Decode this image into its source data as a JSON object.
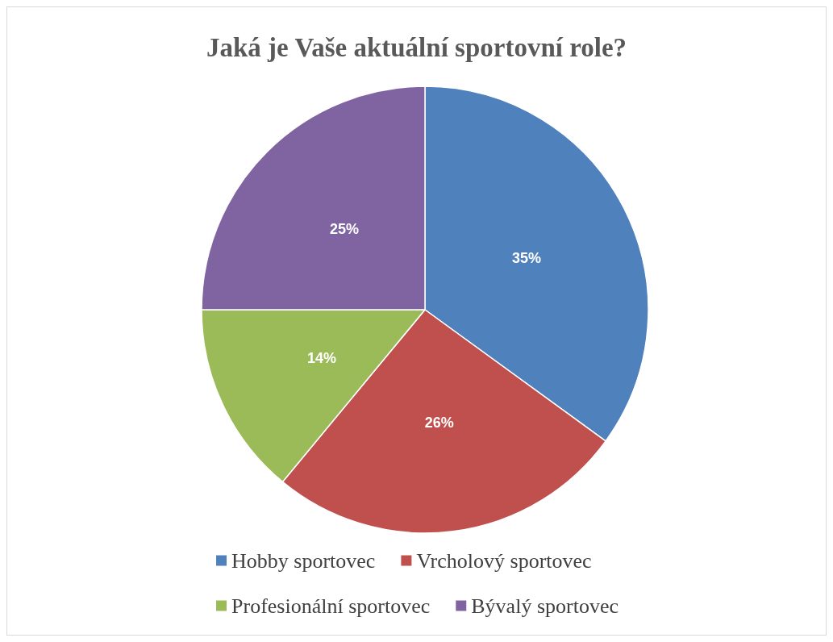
{
  "chart_data": {
    "type": "pie",
    "title": "Jaká je Vaše aktuální sportovní role?",
    "categories": [
      "Hobby sportovec",
      "Vrcholový sportovec",
      "Profesionální sportovec",
      "Bývalý sportovec"
    ],
    "values": [
      35,
      26,
      14,
      25
    ],
    "colors": [
      "#4f81bd",
      "#c0504d",
      "#9bbb59",
      "#8064a2"
    ],
    "value_labels": [
      "35%",
      "26%",
      "14%",
      "25%"
    ],
    "legend": "bottom"
  }
}
